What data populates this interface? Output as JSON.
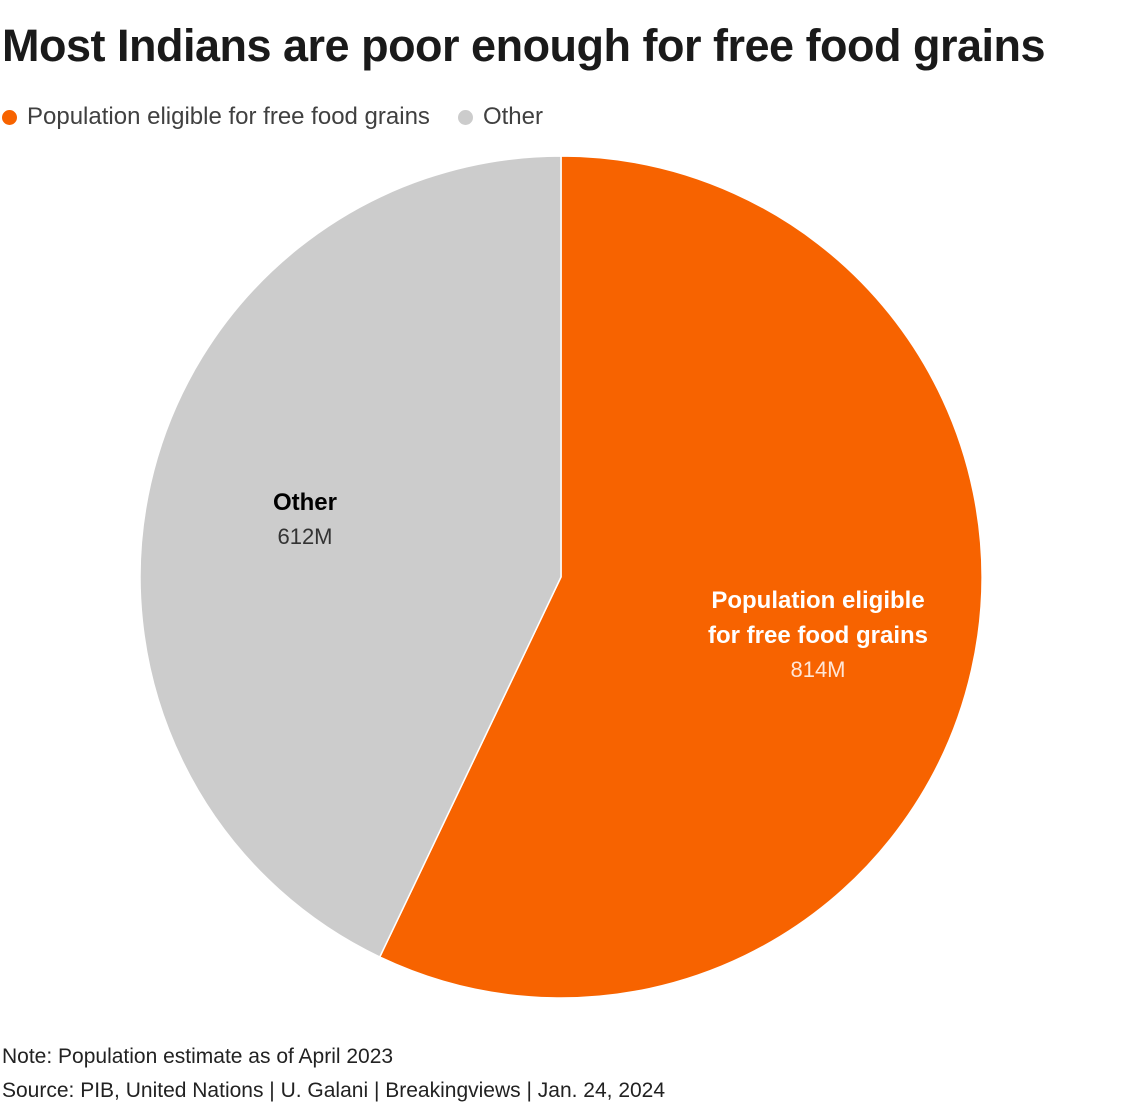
{
  "chart_data": {
    "type": "pie",
    "title": "Most Indians are poor enough for free food grains",
    "slices": [
      {
        "name_lines": [
          "Population eligible",
          "for free food grains"
        ],
        "legend_label": "Population eligible for free food grains",
        "value": 814,
        "value_label": "814M",
        "color": "#f76300"
      },
      {
        "name_lines": [
          "Other"
        ],
        "legend_label": "Other",
        "value": 612,
        "value_label": "612M",
        "color": "#cccccc"
      }
    ],
    "start_angle_deg": 0,
    "direction": "clockwise",
    "legend_position": "top-left"
  },
  "footer": {
    "note": "Note: Population estimate as of April 2023",
    "source": "Source: PIB, United Nations | U. Galani | Breakingviews | Jan. 24, 2024"
  }
}
